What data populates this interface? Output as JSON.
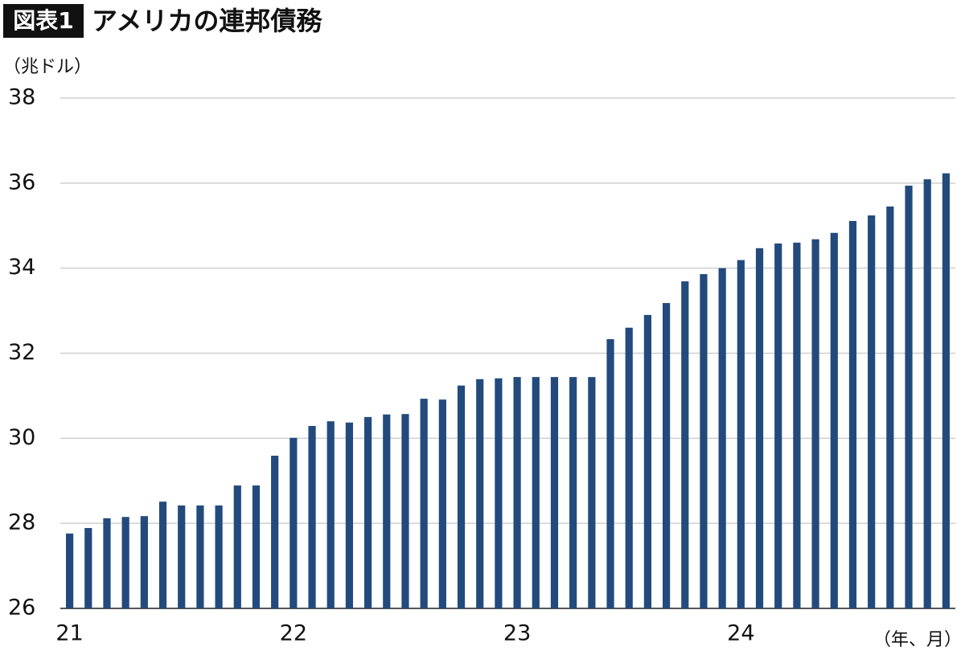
{
  "chart_data": {
    "type": "bar",
    "badge": "図表1",
    "title": "アメリカの連邦債務",
    "y_label": "（兆ドル）",
    "x_label": "（年、月）",
    "categories": [
      "21",
      null,
      null,
      null,
      null,
      null,
      null,
      null,
      null,
      null,
      null,
      null,
      "22",
      null,
      null,
      null,
      null,
      null,
      null,
      null,
      null,
      null,
      null,
      null,
      "23",
      null,
      null,
      null,
      null,
      null,
      null,
      null,
      null,
      null,
      null,
      null,
      "24",
      null,
      null,
      null,
      null,
      null,
      null,
      null,
      null,
      null,
      null,
      null
    ],
    "values": [
      27.76,
      27.89,
      28.12,
      28.15,
      28.17,
      28.51,
      28.42,
      28.42,
      28.42,
      28.89,
      28.89,
      29.59,
      30.01,
      30.29,
      30.4,
      30.37,
      30.5,
      30.56,
      30.57,
      30.93,
      30.91,
      31.24,
      31.39,
      31.41,
      31.44,
      31.44,
      31.44,
      31.44,
      31.44,
      32.33,
      32.6,
      32.9,
      33.18,
      33.69,
      33.86,
      34.0,
      34.19,
      34.47,
      34.58,
      34.6,
      34.68,
      34.83,
      35.11,
      35.24,
      35.45,
      35.94,
      36.09,
      36.23
    ],
    "color": "#234a7c",
    "ylim": [
      26,
      38
    ],
    "yticks": [
      26,
      28,
      30,
      32,
      34,
      36,
      38
    ],
    "grid": true
  }
}
